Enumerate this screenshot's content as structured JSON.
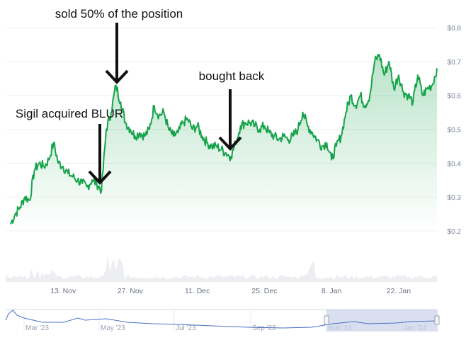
{
  "chart_data": {
    "type": "area",
    "title": "",
    "xlabel": "",
    "ylabel": "",
    "ylim": [
      0.2,
      0.8
    ],
    "y_ticks": [
      "$0.2",
      "$0.3",
      "$0.4",
      "$0.5",
      "$0.6",
      "$0.7",
      "$0.8"
    ],
    "y_tick_values": [
      0.2,
      0.3,
      0.4,
      0.5,
      0.6,
      0.7,
      0.8
    ],
    "x_ticks": [
      "13. Nov",
      "27. Nov",
      "11. Dec",
      "25. Dec",
      "8. Jan",
      "22. Jan"
    ],
    "x_tick_dates": [
      "2023-11-13",
      "2023-11-27",
      "2023-12-11",
      "2023-12-25",
      "2024-01-08",
      "2024-01-22"
    ],
    "xlim": [
      "2023-11-01",
      "2024-01-30"
    ],
    "grid": true,
    "line_color": "#16a34a",
    "fill_color": "#16a34a",
    "series": [
      {
        "x": [
          "2023-11-02",
          "2023-11-03",
          "2023-11-04",
          "2023-11-05",
          "2023-11-06",
          "2023-11-07",
          "2023-11-08",
          "2023-11-09",
          "2023-11-10",
          "2023-11-11",
          "2023-11-12",
          "2023-11-13",
          "2023-11-14",
          "2023-11-15",
          "2023-11-16",
          "2023-11-17",
          "2023-11-18",
          "2023-11-19",
          "2023-11-20",
          "2023-11-21",
          "2023-11-22",
          "2023-11-23",
          "2023-11-24",
          "2023-11-25",
          "2023-11-26",
          "2023-11-27",
          "2023-11-28",
          "2023-11-29",
          "2023-11-30",
          "2023-12-01",
          "2023-12-02",
          "2023-12-03",
          "2023-12-04",
          "2023-12-05",
          "2023-12-06",
          "2023-12-07",
          "2023-12-08",
          "2023-12-09",
          "2023-12-10",
          "2023-12-11",
          "2023-12-12",
          "2023-12-13",
          "2023-12-14",
          "2023-12-15",
          "2023-12-16",
          "2023-12-17",
          "2023-12-18",
          "2023-12-19",
          "2023-12-20",
          "2023-12-21",
          "2023-12-22",
          "2023-12-23",
          "2023-12-24",
          "2023-12-25",
          "2023-12-26",
          "2023-12-27",
          "2023-12-28",
          "2023-12-29",
          "2023-12-30",
          "2023-12-31",
          "2024-01-01",
          "2024-01-02",
          "2024-01-03",
          "2024-01-04",
          "2024-01-05",
          "2024-01-06",
          "2024-01-07",
          "2024-01-08",
          "2024-01-09",
          "2024-01-10",
          "2024-01-11",
          "2024-01-12",
          "2024-01-13",
          "2024-01-14",
          "2024-01-15",
          "2024-01-16",
          "2024-01-17",
          "2024-01-18",
          "2024-01-19",
          "2024-01-20",
          "2024-01-21",
          "2024-01-22",
          "2024-01-23",
          "2024-01-24",
          "2024-01-25",
          "2024-01-26",
          "2024-01-27",
          "2024-01-28",
          "2024-01-29",
          "2024-01-30"
        ],
        "y": [
          0.22,
          0.25,
          0.27,
          0.3,
          0.29,
          0.38,
          0.4,
          0.39,
          0.41,
          0.46,
          0.4,
          0.39,
          0.37,
          0.36,
          0.35,
          0.34,
          0.33,
          0.35,
          0.34,
          0.32,
          0.5,
          0.55,
          0.63,
          0.58,
          0.52,
          0.5,
          0.48,
          0.49,
          0.48,
          0.5,
          0.57,
          0.54,
          0.55,
          0.5,
          0.48,
          0.49,
          0.52,
          0.53,
          0.5,
          0.51,
          0.48,
          0.46,
          0.45,
          0.45,
          0.44,
          0.43,
          0.42,
          0.46,
          0.51,
          0.52,
          0.52,
          0.51,
          0.5,
          0.51,
          0.49,
          0.48,
          0.47,
          0.48,
          0.47,
          0.48,
          0.5,
          0.55,
          0.51,
          0.49,
          0.47,
          0.45,
          0.46,
          0.41,
          0.45,
          0.48,
          0.55,
          0.6,
          0.57,
          0.6,
          0.57,
          0.6,
          0.7,
          0.72,
          0.66,
          0.7,
          0.62,
          0.66,
          0.61,
          0.6,
          0.58,
          0.66,
          0.6,
          0.62,
          0.63,
          0.68
        ]
      }
    ],
    "annotations": [
      {
        "text": "sold 50% of the position",
        "date": "2023-11-24"
      },
      {
        "text": "bought back",
        "date": "2023-12-18"
      },
      {
        "text": "Sigil acquired BLUR",
        "date": "2023-11-21"
      }
    ],
    "navigator": {
      "ticks": [
        "Mar '23",
        "May '23",
        "Jul '23",
        "Sep '23",
        "Nov '23",
        "Jan '24"
      ],
      "line_color": "#4a6fc4",
      "selected_range": [
        "2023-11-01",
        "2024-01-30"
      ]
    }
  }
}
